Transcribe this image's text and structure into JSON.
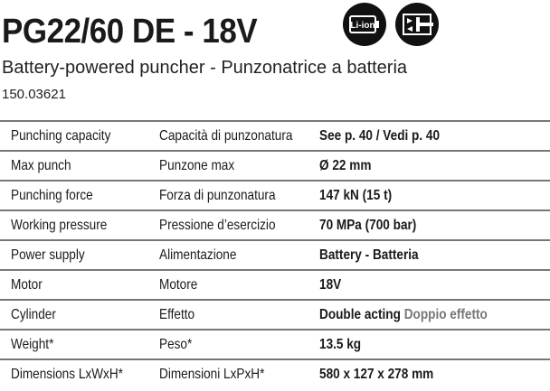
{
  "title": "PG22/60 DE - 18V",
  "subtitle": "Battery-powered puncher - Punzonatrice a batteria",
  "code": "150.03621",
  "icons": [
    {
      "name": "li-ion-battery-icon",
      "label": "Li-ion"
    },
    {
      "name": "double-acting-cylinder-icon"
    }
  ],
  "rows": [
    {
      "en": "Punching capacity",
      "it": "Capacità di punzonatura",
      "value": "See p. 40 / Vedi p. 40"
    },
    {
      "en": "Max punch",
      "it": "Punzone max",
      "value": "Ø 22 mm"
    },
    {
      "en": "Punching force",
      "it": "Forza di punzonatura",
      "value": "147 kN (15 t)"
    },
    {
      "en": "Working pressure",
      "it": "Pressione d’esercizio",
      "value": "70 MPa (700 bar)"
    },
    {
      "en": "Power supply",
      "it": "Alimentazione",
      "value": "Battery - Batteria"
    },
    {
      "en": "Motor",
      "it": "Motore",
      "value": "18V"
    },
    {
      "en": "Cylinder",
      "it": "Effetto",
      "value": "Double acting",
      "value_it": "Doppio effetto"
    },
    {
      "en": "Weight*",
      "it": "Peso*",
      "value": "13.5 kg"
    },
    {
      "en": "Dimensions LxWxH*",
      "it": "Dimensioni LxPxH*",
      "value": "580 x 127 x 278 mm"
    }
  ]
}
